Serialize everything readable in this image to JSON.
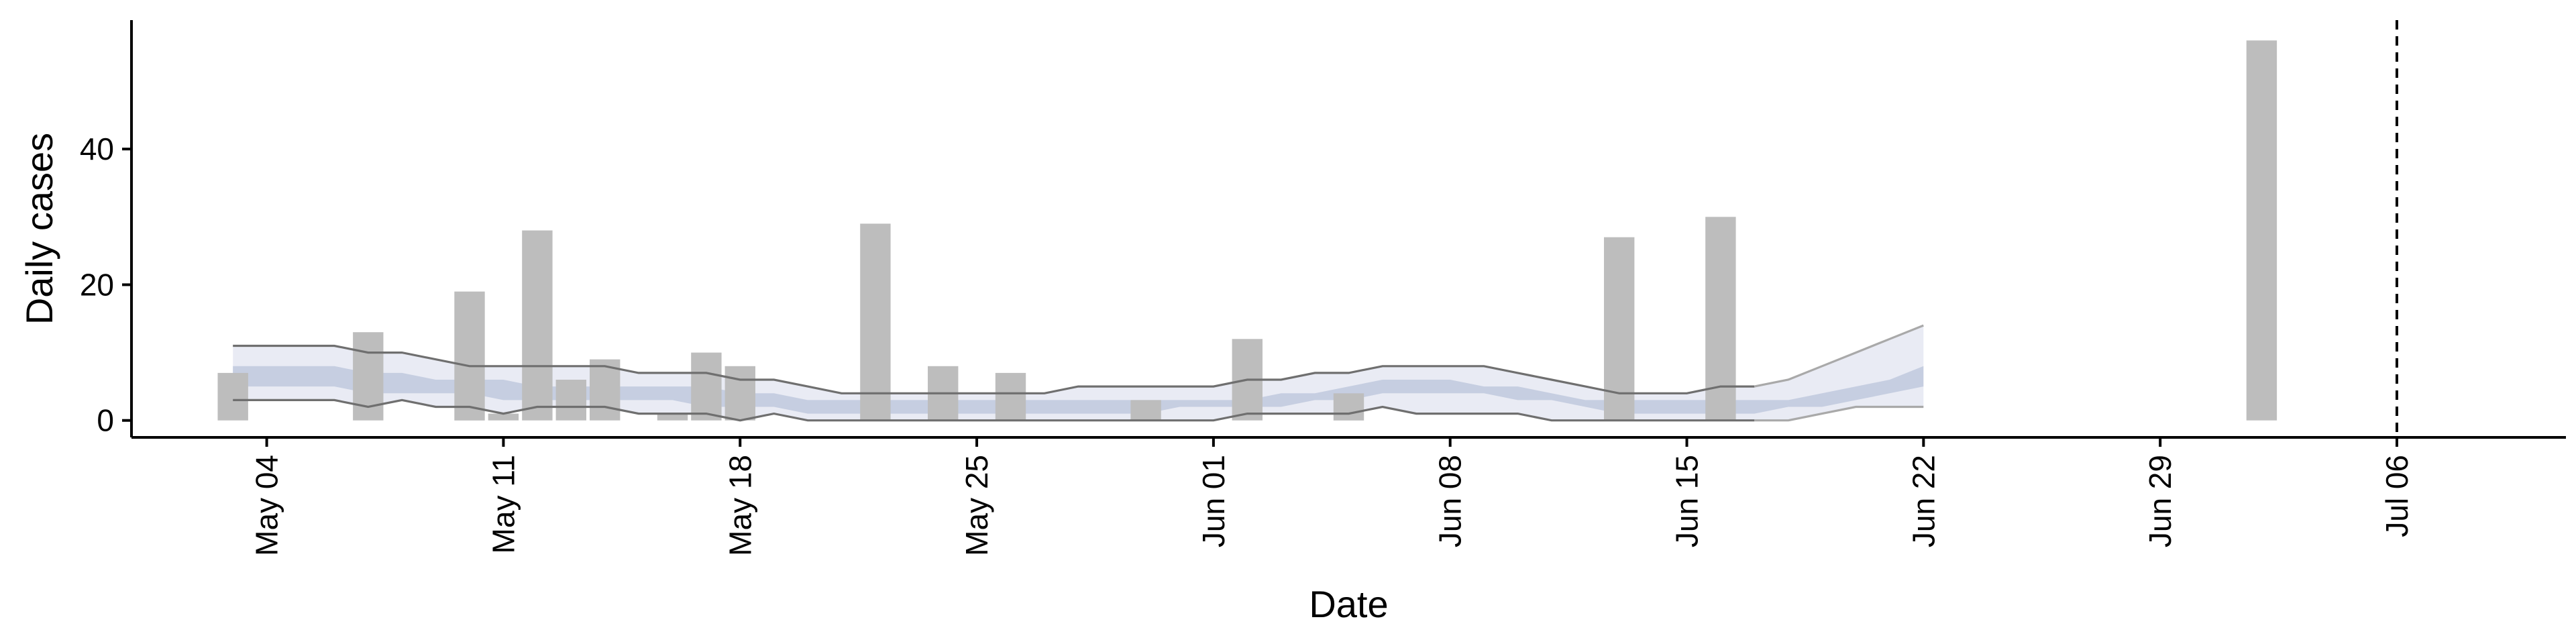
{
  "chart_data": {
    "type": "bar",
    "xlabel": "Date",
    "ylabel": "Daily cases",
    "x_type": "date",
    "x_domain": [
      "2020-04-30",
      "2020-07-11"
    ],
    "ylim": [
      -2.5,
      59
    ],
    "yticks": [
      0,
      20,
      40
    ],
    "xticks": [
      {
        "date": "2020-05-04",
        "label": "May 04"
      },
      {
        "date": "2020-05-11",
        "label": "May 11"
      },
      {
        "date": "2020-05-18",
        "label": "May 18"
      },
      {
        "date": "2020-05-25",
        "label": "May 25"
      },
      {
        "date": "2020-06-01",
        "label": "Jun 01"
      },
      {
        "date": "2020-06-08",
        "label": "Jun 08"
      },
      {
        "date": "2020-06-15",
        "label": "Jun 15"
      },
      {
        "date": "2020-06-22",
        "label": "Jun 22"
      },
      {
        "date": "2020-06-29",
        "label": "Jun 29"
      },
      {
        "date": "2020-07-06",
        "label": "Jul 06"
      }
    ],
    "vline_date": "2020-07-06",
    "bars": {
      "color": "#bdbdbd",
      "points": [
        {
          "date": "2020-05-03",
          "value": 7
        },
        {
          "date": "2020-05-07",
          "value": 13
        },
        {
          "date": "2020-05-10",
          "value": 19
        },
        {
          "date": "2020-05-11",
          "value": 1
        },
        {
          "date": "2020-05-12",
          "value": 28
        },
        {
          "date": "2020-05-13",
          "value": 6
        },
        {
          "date": "2020-05-14",
          "value": 9
        },
        {
          "date": "2020-05-16",
          "value": 1
        },
        {
          "date": "2020-05-17",
          "value": 10
        },
        {
          "date": "2020-05-18",
          "value": 8
        },
        {
          "date": "2020-05-22",
          "value": 29
        },
        {
          "date": "2020-05-24",
          "value": 8
        },
        {
          "date": "2020-05-26",
          "value": 7
        },
        {
          "date": "2020-05-30",
          "value": 3
        },
        {
          "date": "2020-06-02",
          "value": 12
        },
        {
          "date": "2020-06-05",
          "value": 4
        },
        {
          "date": "2020-06-13",
          "value": 27
        },
        {
          "date": "2020-06-16",
          "value": 30
        },
        {
          "date": "2020-07-02",
          "value": 56
        }
      ]
    },
    "estimate": {
      "dates": [
        "2020-05-03",
        "2020-05-04",
        "2020-05-05",
        "2020-05-06",
        "2020-05-07",
        "2020-05-08",
        "2020-05-09",
        "2020-05-10",
        "2020-05-11",
        "2020-05-12",
        "2020-05-13",
        "2020-05-14",
        "2020-05-15",
        "2020-05-16",
        "2020-05-17",
        "2020-05-18",
        "2020-05-19",
        "2020-05-20",
        "2020-05-21",
        "2020-05-22",
        "2020-05-23",
        "2020-05-24",
        "2020-05-25",
        "2020-05-26",
        "2020-05-27",
        "2020-05-28",
        "2020-05-29",
        "2020-05-30",
        "2020-05-31",
        "2020-06-01",
        "2020-06-02",
        "2020-06-03",
        "2020-06-04",
        "2020-06-05",
        "2020-06-06",
        "2020-06-07",
        "2020-06-08",
        "2020-06-09",
        "2020-06-10",
        "2020-06-11",
        "2020-06-12",
        "2020-06-13",
        "2020-06-14",
        "2020-06-15",
        "2020-06-16",
        "2020-06-17",
        "2020-06-18",
        "2020-06-19",
        "2020-06-20",
        "2020-06-21",
        "2020-06-22"
      ],
      "lower90": [
        3,
        3,
        3,
        3,
        2,
        3,
        2,
        2,
        1,
        2,
        2,
        2,
        1,
        1,
        1,
        0,
        1,
        0,
        0,
        0,
        0,
        0,
        0,
        0,
        0,
        0,
        0,
        0,
        0,
        0,
        1,
        1,
        1,
        1,
        2,
        1,
        1,
        1,
        1,
        0,
        0,
        0,
        0,
        0,
        0,
        0,
        0,
        1,
        2,
        2,
        2
      ],
      "upper90": [
        11,
        11,
        11,
        11,
        10,
        10,
        9,
        8,
        8,
        8,
        8,
        8,
        7,
        7,
        7,
        6,
        6,
        5,
        4,
        4,
        4,
        4,
        4,
        4,
        4,
        5,
        5,
        5,
        5,
        5,
        6,
        6,
        7,
        7,
        8,
        8,
        8,
        8,
        7,
        6,
        5,
        4,
        4,
        4,
        5,
        5,
        6,
        8,
        10,
        12,
        14
      ],
      "lower50": [
        5,
        5,
        5,
        5,
        4,
        4,
        4,
        4,
        3,
        3,
        3,
        3,
        3,
        3,
        2,
        2,
        2,
        1,
        1,
        1,
        1,
        1,
        1,
        1,
        1,
        1,
        1,
        1,
        2,
        2,
        2,
        2,
        3,
        3,
        4,
        4,
        4,
        4,
        3,
        3,
        2,
        1,
        1,
        1,
        1,
        1,
        2,
        2,
        3,
        4,
        5
      ],
      "upper50": [
        8,
        8,
        8,
        8,
        7,
        7,
        6,
        6,
        6,
        5,
        5,
        5,
        5,
        5,
        5,
        4,
        4,
        3,
        3,
        3,
        3,
        3,
        3,
        3,
        3,
        3,
        3,
        3,
        3,
        3,
        3,
        4,
        4,
        5,
        6,
        6,
        6,
        5,
        5,
        4,
        3,
        3,
        3,
        3,
        3,
        3,
        3,
        4,
        5,
        6,
        8
      ],
      "median": [
        6.5,
        6.5,
        6.5,
        6.5,
        5.5,
        5.5,
        5,
        5,
        4.5,
        4,
        4,
        4,
        4,
        4,
        3.5,
        3,
        3,
        2,
        2,
        2,
        2,
        2,
        2,
        2,
        2,
        2,
        2,
        2,
        2.5,
        2.5,
        2.5,
        3,
        3.5,
        4,
        5,
        5,
        5,
        4.5,
        4,
        3.5,
        2.5,
        2,
        2,
        2,
        2,
        2,
        2.5,
        3,
        4,
        5,
        6.5
      ],
      "outer_band_color": "#e9ebf4",
      "inner_band_color": "#bfc9dd",
      "median_color": "#a9b7d0",
      "bound_line_color": "#6f6f6f",
      "bound_line_tail_color": "#a9a9a9"
    }
  }
}
